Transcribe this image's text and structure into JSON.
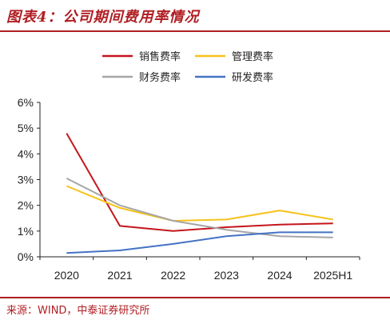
{
  "header": {
    "title": "图表4：公司期间费用率情况"
  },
  "footer": {
    "source": "来源：WIND，中泰证券研究所"
  },
  "chart_data": {
    "type": "line",
    "title": "图表4：公司期间费用率情况",
    "x": [
      "2020",
      "2021",
      "2022",
      "2023",
      "2024",
      "2025H1"
    ],
    "ylim": [
      0,
      6
    ],
    "yticks": [
      "0%",
      "1%",
      "2%",
      "3%",
      "4%",
      "5%",
      "6%"
    ],
    "ytick_values": [
      0,
      1,
      2,
      3,
      4,
      5,
      6
    ],
    "unit": "%",
    "grid": false,
    "legend_position": "top",
    "series": [
      {
        "name": "销售费率",
        "color": "#c4161c",
        "values": [
          4.8,
          1.2,
          1.0,
          1.15,
          1.25,
          1.3
        ]
      },
      {
        "name": "管理费率",
        "color": "#f6c21b",
        "values": [
          2.75,
          1.9,
          1.4,
          1.45,
          1.8,
          1.45
        ]
      },
      {
        "name": "财务费率",
        "color": "#a6a6a6",
        "values": [
          3.05,
          2.0,
          1.4,
          1.05,
          0.8,
          0.75
        ]
      },
      {
        "name": "研发费率",
        "color": "#4472c4",
        "values": [
          0.15,
          0.25,
          0.5,
          0.8,
          0.95,
          0.95
        ]
      }
    ]
  }
}
